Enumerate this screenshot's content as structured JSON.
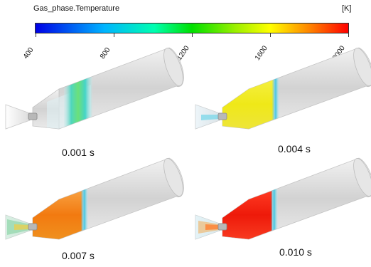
{
  "legend": {
    "title": "Gas_phase.Temperature",
    "unit": "[K]",
    "ticks": [
      "400",
      "800",
      "1200",
      "1600",
      "2000"
    ]
  },
  "panels": [
    {
      "caption": "0.001 s"
    },
    {
      "caption": "0.004 s"
    },
    {
      "caption": "0.007 s"
    },
    {
      "caption": "0.010 s"
    }
  ],
  "colors": {
    "cold": "#0000e6",
    "hot": "#ff0000",
    "shell": "#d8d8d8"
  }
}
